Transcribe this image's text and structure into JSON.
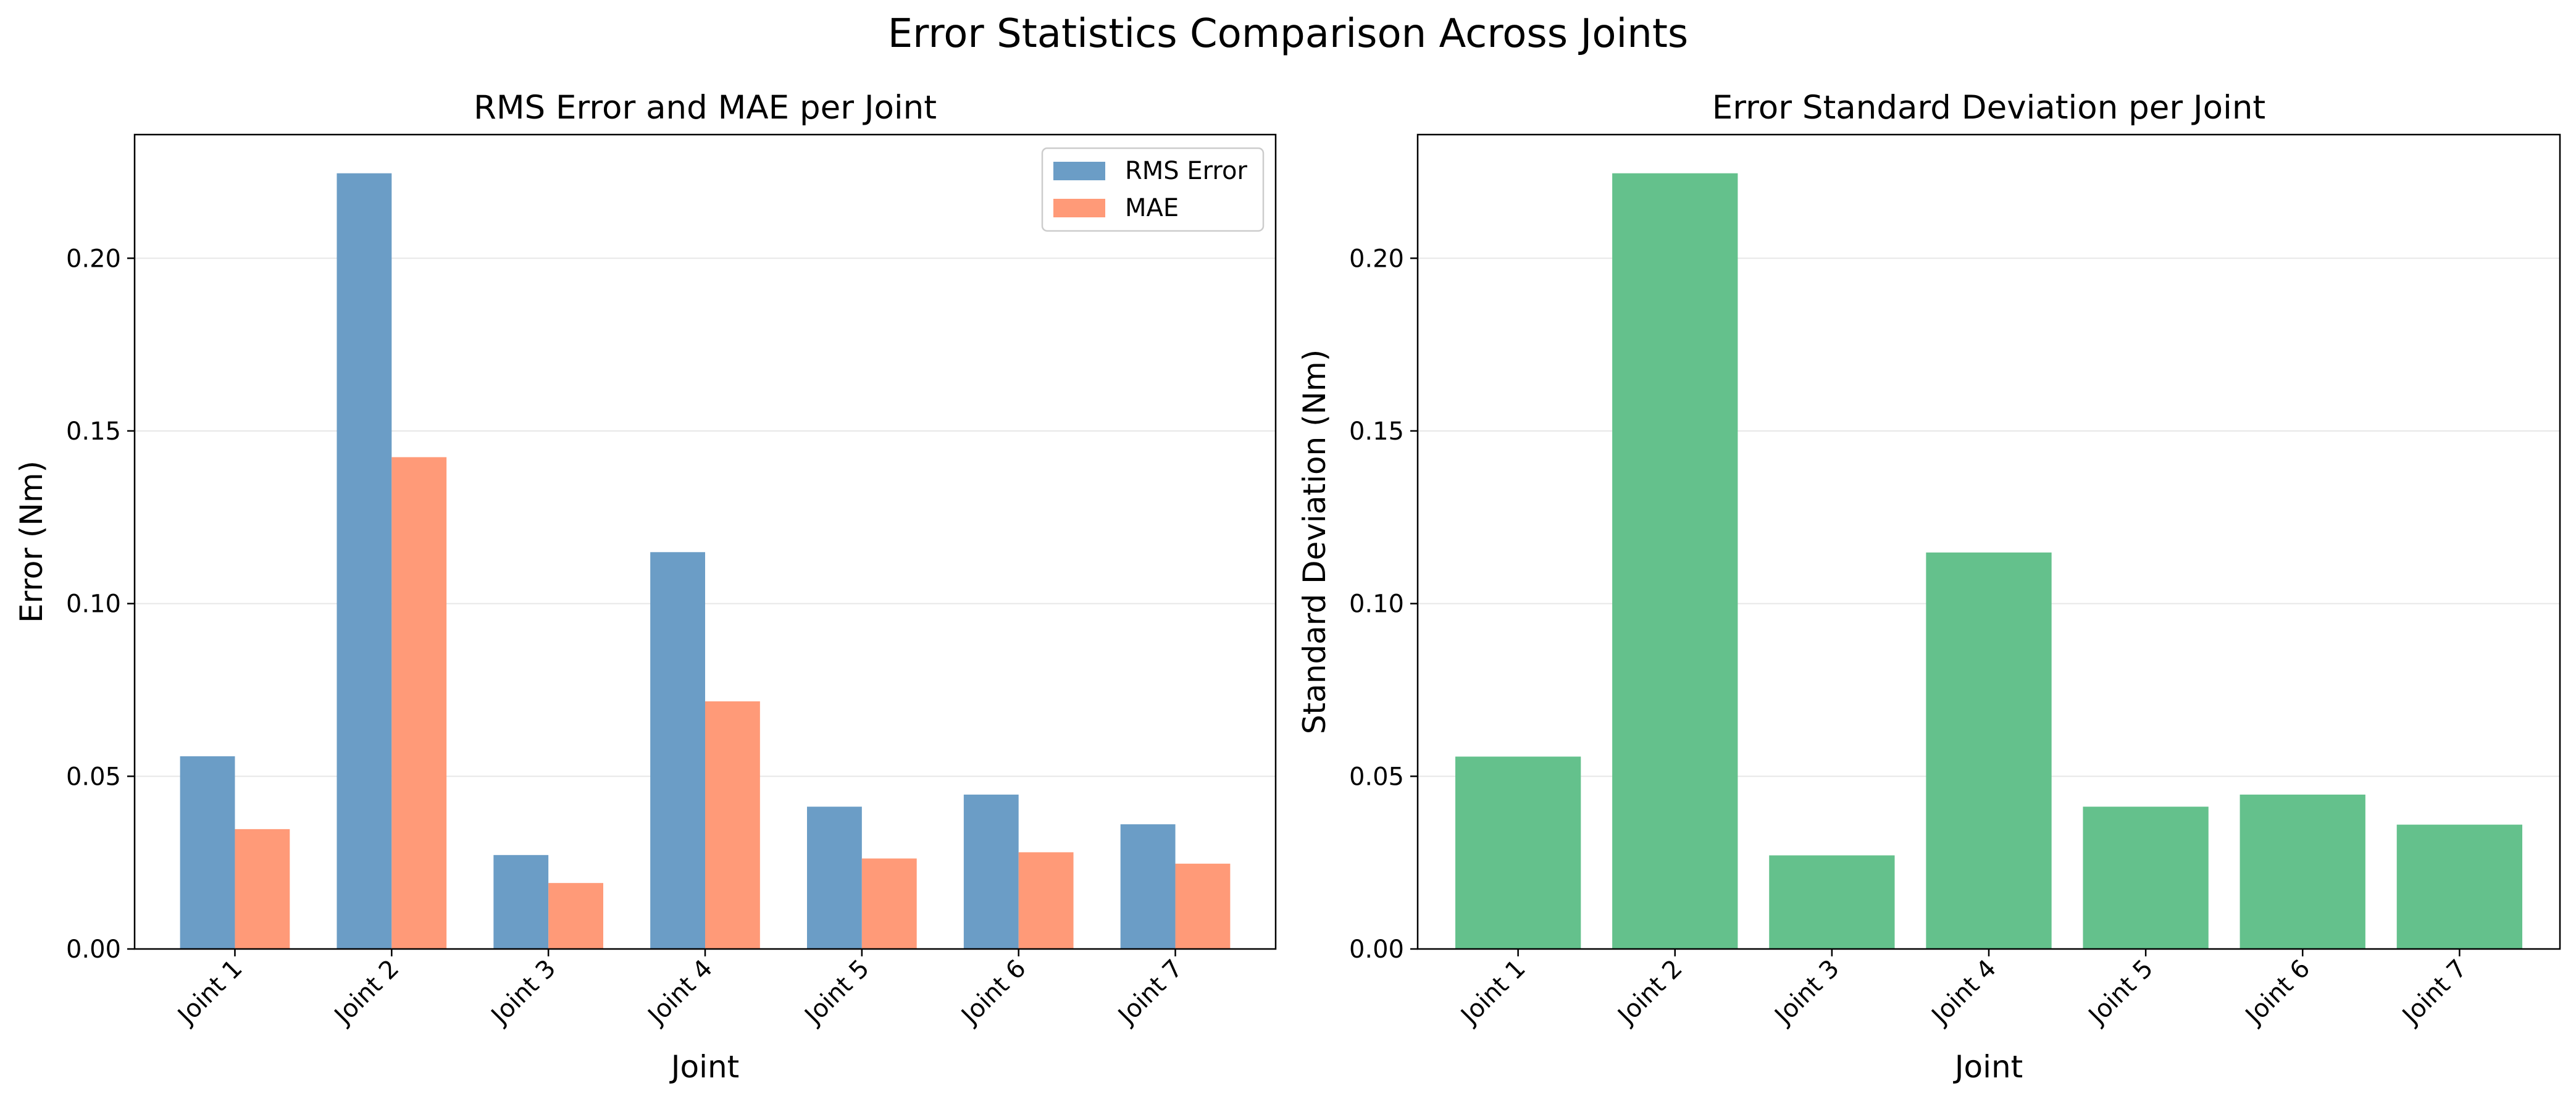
{
  "figure": {
    "title": "Error Statistics Comparison Across Joints"
  },
  "chart_data": [
    {
      "type": "bar",
      "title": "RMS Error and MAE per Joint",
      "xlabel": "Joint",
      "ylabel": "Error (Nm)",
      "categories": [
        "Joint 1",
        "Joint 2",
        "Joint 3",
        "Joint 4",
        "Joint 5",
        "Joint 6",
        "Joint 7"
      ],
      "series": [
        {
          "name": "RMS Error",
          "color": "#6b9dc6",
          "values": [
            0.0558,
            0.2246,
            0.0272,
            0.1149,
            0.0412,
            0.0447,
            0.0361
          ]
        },
        {
          "name": "MAE",
          "color": "#ff9a78",
          "values": [
            0.0347,
            0.1424,
            0.0191,
            0.0717,
            0.0262,
            0.028,
            0.0247
          ]
        }
      ],
      "ylim": [
        0,
        0.2358
      ],
      "yticks": [
        0.0,
        0.05,
        0.1,
        0.15,
        0.2
      ],
      "ytick_labels": [
        "0.00",
        "0.05",
        "0.10",
        "0.15",
        "0.20"
      ],
      "grid": "y",
      "legend": "top-right"
    },
    {
      "type": "bar",
      "title": "Error Standard Deviation per Joint",
      "xlabel": "Joint",
      "ylabel": "Standard Deviation (Nm)",
      "categories": [
        "Joint 1",
        "Joint 2",
        "Joint 3",
        "Joint 4",
        "Joint 5",
        "Joint 6",
        "Joint 7"
      ],
      "series": [
        {
          "color": "#64c18c",
          "values": [
            0.0557,
            0.2246,
            0.0271,
            0.1148,
            0.0412,
            0.0447,
            0.036
          ]
        }
      ],
      "ylim": [
        0,
        0.2358
      ],
      "yticks": [
        0.0,
        0.05,
        0.1,
        0.15,
        0.2
      ],
      "ytick_labels": [
        "0.00",
        "0.05",
        "0.10",
        "0.15",
        "0.20"
      ],
      "grid": "y",
      "legend": "none"
    }
  ]
}
